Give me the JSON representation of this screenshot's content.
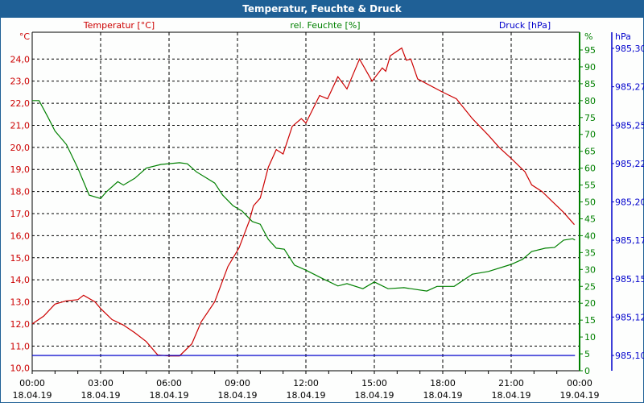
{
  "title": "Temperatur, Feuchte & Druck",
  "colors": {
    "temperature": "#cc0000",
    "humidity": "#008000",
    "pressure": "#0000cc",
    "titlebar": "#1f6096"
  },
  "chart_data": {
    "type": "line",
    "grid": true,
    "legend_headers": [
      "Temperatur [°C]",
      "rel. Feuchte [%]",
      "Druck [hPa]"
    ],
    "x_ticks": [
      {
        "time": "00:00",
        "date": "18.04.19"
      },
      {
        "time": "03:00",
        "date": "18.04.19"
      },
      {
        "time": "06:00",
        "date": "18.04.19"
      },
      {
        "time": "09:00",
        "date": "18.04.19"
      },
      {
        "time": "12:00",
        "date": "18.04.19"
      },
      {
        "time": "15:00",
        "date": "18.04.19"
      },
      {
        "time": "18:00",
        "date": "18.04.19"
      },
      {
        "time": "21:00",
        "date": "18.04.19"
      },
      {
        "time": "00:00",
        "date": "19.04.19"
      }
    ],
    "xlim_hours": [
      0,
      24
    ],
    "axes": {
      "temperature": {
        "unit": "°C",
        "ylim": [
          10,
          24
        ],
        "ticks": [
          "10,0",
          "11,0",
          "12,0",
          "13,0",
          "14,0",
          "15,0",
          "16,0",
          "17,0",
          "18,0",
          "19,0",
          "20,0",
          "21,0",
          "22,0",
          "23,0",
          "24,0"
        ]
      },
      "humidity": {
        "unit": "%",
        "ylim": [
          0,
          95
        ],
        "ticks": [
          "0",
          "5",
          "10",
          "15",
          "20",
          "25",
          "30",
          "35",
          "40",
          "45",
          "50",
          "55",
          "60",
          "65",
          "70",
          "75",
          "80",
          "85",
          "90",
          "95"
        ]
      },
      "pressure": {
        "unit": "hPa",
        "ylim": [
          985.1,
          985.3
        ],
        "ticks": [
          "985,10",
          "985,12",
          "985,15",
          "985,17",
          "985,20",
          "985,22",
          "985,25",
          "985,27",
          "985,30"
        ]
      }
    },
    "series": [
      {
        "name": "Temperatur [°C]",
        "axis": "temperature",
        "x": [
          0,
          0.5,
          1,
          1.5,
          2,
          2.25,
          2.75,
          3,
          3.5,
          4,
          4.5,
          5,
          5.5,
          6,
          6.46,
          7,
          7.41,
          8,
          8.58,
          9.07,
          9.53,
          9.7,
          10,
          10.35,
          10.7,
          11,
          11.4,
          11.8,
          12,
          12.6,
          12.95,
          13.4,
          13.8,
          14.35,
          14.9,
          15.35,
          15.5,
          15.7,
          16.2,
          16.4,
          16.6,
          16.9,
          18,
          18.6,
          19.3,
          20,
          20.47,
          21,
          21.6,
          21.9,
          22.35,
          22.8,
          23.3,
          23.77
        ],
        "y": [
          12.0,
          12.35,
          12.9,
          13.05,
          13.1,
          13.3,
          13.0,
          12.7,
          12.2,
          11.95,
          11.6,
          11.2,
          10.6,
          10.55,
          10.55,
          11.1,
          12.1,
          13.0,
          14.6,
          15.45,
          16.7,
          17.35,
          17.7,
          19.1,
          19.9,
          19.7,
          20.95,
          21.3,
          21.1,
          22.35,
          22.2,
          23.2,
          22.65,
          24.0,
          23.0,
          23.6,
          23.45,
          24.15,
          24.5,
          23.95,
          24.0,
          23.1,
          22.5,
          22.2,
          21.3,
          20.55,
          20.0,
          19.5,
          18.9,
          18.3,
          18.0,
          17.55,
          17.05,
          16.5
        ]
      },
      {
        "name": "rel. Feuchte [%]",
        "axis": "humidity",
        "x": [
          0,
          0.3,
          0.7,
          1,
          1.5,
          2,
          2.5,
          3,
          3.25,
          3.75,
          4,
          4.5,
          5,
          5.65,
          6.46,
          6.8,
          7.2,
          8,
          8.35,
          8.8,
          9.2,
          9.65,
          10,
          10.35,
          10.7,
          11.05,
          11.5,
          12,
          12.7,
          13.4,
          13.8,
          14.5,
          15,
          15.6,
          16.3,
          17.3,
          17.75,
          18.5,
          19.3,
          20,
          21,
          21.5,
          21.9,
          22.5,
          22.9,
          23.3,
          23.7,
          23.8
        ],
        "y": [
          80,
          80,
          75,
          71,
          67,
          60,
          52,
          51,
          53,
          56,
          55,
          57,
          60,
          61.1,
          61.6,
          61.3,
          58.9,
          55.6,
          52,
          48.9,
          47.3,
          44.2,
          43.4,
          38.9,
          36.3,
          36.0,
          31.3,
          29.8,
          27.4,
          25.1,
          25.8,
          24.3,
          26.3,
          24.3,
          24.6,
          23.6,
          25,
          25,
          28.6,
          29.4,
          31.5,
          33,
          35.3,
          36.3,
          36.5,
          38.7,
          39.1,
          38.7
        ]
      },
      {
        "name": "Druck [hPa]",
        "axis": "pressure",
        "x": [
          0,
          23.8
        ],
        "y": [
          985.1,
          985.1
        ]
      }
    ]
  }
}
